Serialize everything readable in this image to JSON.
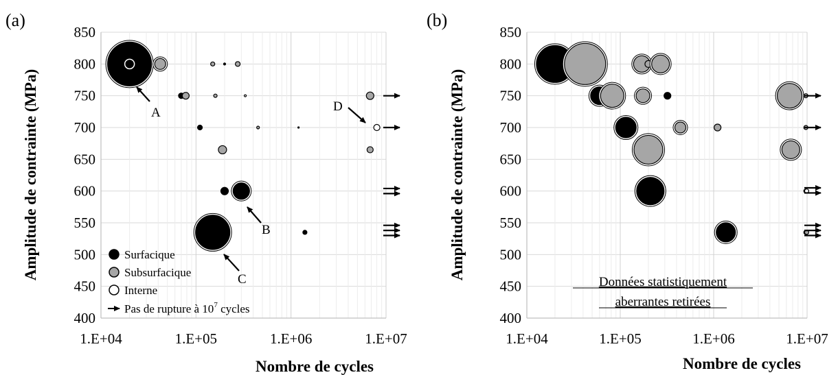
{
  "chart_data": [
    {
      "type": "scatter",
      "panel_label": "(a)",
      "xlabel": "Nombre de cycles",
      "ylabel": "Amplitude de contrainte (MPa)",
      "xscale": "log",
      "xlim": [
        10000,
        10000000
      ],
      "ylim": [
        400,
        850
      ],
      "x_ticks": [
        "1.E+04",
        "1.E+05",
        "1.E+06",
        "1.E+07"
      ],
      "y_ticks": [
        "400",
        "450",
        "500",
        "550",
        "600",
        "650",
        "700",
        "750",
        "800",
        "850"
      ],
      "grid": true,
      "legend_position": "bottom-left",
      "legend": [
        {
          "label": "Surfacique",
          "symbol": "surface"
        },
        {
          "label": "Subsurfacique",
          "symbol": "subsurface"
        },
        {
          "label": "Interne",
          "symbol": "internal"
        },
        {
          "label": "Pas de rupture à 10",
          "sup": "7",
          "label_after": " cycles",
          "symbol": "arrow"
        }
      ],
      "colors": {
        "surface": "#000000",
        "subsurface": "#a6a6a6",
        "internal": "#ffffff",
        "outline": "#000000"
      },
      "points": [
        {
          "x": 20000,
          "y": 800,
          "kind": "surface",
          "size": 32
        },
        {
          "x": 20000,
          "y": 800,
          "kind": "internal",
          "size": 7
        },
        {
          "x": 42000,
          "y": 800,
          "kind": "subsurface",
          "size": 8
        },
        {
          "x": 70000,
          "y": 750,
          "kind": "surface",
          "size": 4
        },
        {
          "x": 78000,
          "y": 750,
          "kind": "subsurface",
          "size": 5
        },
        {
          "x": 150000,
          "y": 800,
          "kind": "subsurface",
          "size": 3
        },
        {
          "x": 200000,
          "y": 800,
          "kind": "surface",
          "size": 1.5
        },
        {
          "x": 275000,
          "y": 800,
          "kind": "subsurface",
          "size": 3.5
        },
        {
          "x": 160000,
          "y": 750,
          "kind": "subsurface",
          "size": 2.5
        },
        {
          "x": 330000,
          "y": 750,
          "kind": "internal",
          "size": 1.5
        },
        {
          "x": 110000,
          "y": 700,
          "kind": "surface",
          "size": 3.5
        },
        {
          "x": 450000,
          "y": 700,
          "kind": "subsurface",
          "size": 2
        },
        {
          "x": 1200000,
          "y": 700,
          "kind": "surface",
          "size": 1
        },
        {
          "x": 190000,
          "y": 665,
          "kind": "subsurface",
          "size": 6
        },
        {
          "x": 200000,
          "y": 600,
          "kind": "surface",
          "size": 5.5
        },
        {
          "x": 300000,
          "y": 600,
          "kind": "surface",
          "size": 12
        },
        {
          "x": 150000,
          "y": 535,
          "kind": "surface",
          "size": 25
        },
        {
          "x": 1400000,
          "y": 535,
          "kind": "surface",
          "size": 3
        },
        {
          "x": 6800000,
          "y": 750,
          "kind": "subsurface",
          "size": 5.5
        },
        {
          "x": 8000000,
          "y": 700,
          "kind": "internal",
          "size": 4.5
        },
        {
          "x": 6800000,
          "y": 665,
          "kind": "subsurface",
          "size": 4.5
        }
      ],
      "runouts": [
        {
          "x": 10000000,
          "y": 750
        },
        {
          "x": 10000000,
          "y": 700
        },
        {
          "x": 10000000,
          "y": 604
        },
        {
          "x": 10000000,
          "y": 596
        },
        {
          "x": 10000000,
          "y": 546
        },
        {
          "x": 10000000,
          "y": 538
        },
        {
          "x": 10000000,
          "y": 530
        }
      ],
      "callouts": [
        {
          "label": "A",
          "x": 20000,
          "y": 800
        },
        {
          "label": "B",
          "x": 300000,
          "y": 600
        },
        {
          "label": "C",
          "x": 150000,
          "y": 535
        },
        {
          "label": "D",
          "x": 8000000,
          "y": 700
        }
      ]
    },
    {
      "type": "scatter",
      "panel_label": "(b)",
      "xlabel": "Nombre de cycles",
      "ylabel": "Amplitude de contrainte (MPa)",
      "xscale": "log",
      "xlim": [
        10000,
        10000000
      ],
      "ylim": [
        400,
        850
      ],
      "x_ticks": [
        "1.E+04",
        "1.E+05",
        "1.E+06",
        "1.E+07"
      ],
      "y_ticks": [
        "400",
        "450",
        "500",
        "550",
        "600",
        "650",
        "700",
        "750",
        "800",
        "850"
      ],
      "grid": true,
      "annotation": [
        "Données statistiquement",
        "aberrantes retirées"
      ],
      "points": [
        {
          "x": 20000,
          "y": 800,
          "kind": "surface",
          "size": 27
        },
        {
          "x": 42000,
          "y": 800,
          "kind": "subsurface",
          "size": 30
        },
        {
          "x": 60000,
          "y": 750,
          "kind": "surface",
          "size": 13
        },
        {
          "x": 82000,
          "y": 750,
          "kind": "subsurface",
          "size": 17
        },
        {
          "x": 170000,
          "y": 800,
          "kind": "subsurface",
          "size": 12
        },
        {
          "x": 200000,
          "y": 800,
          "kind": "subsurface",
          "size": 5
        },
        {
          "x": 270000,
          "y": 800,
          "kind": "subsurface",
          "size": 13
        },
        {
          "x": 175000,
          "y": 750,
          "kind": "subsurface",
          "size": 10
        },
        {
          "x": 320000,
          "y": 750,
          "kind": "surface",
          "size": 5
        },
        {
          "x": 115000,
          "y": 700,
          "kind": "surface",
          "size": 15
        },
        {
          "x": 440000,
          "y": 700,
          "kind": "subsurface",
          "size": 8
        },
        {
          "x": 1100000,
          "y": 700,
          "kind": "subsurface",
          "size": 5
        },
        {
          "x": 200000,
          "y": 665,
          "kind": "subsurface",
          "size": 21
        },
        {
          "x": 210000,
          "y": 600,
          "kind": "surface",
          "size": 20
        },
        {
          "x": 1350000,
          "y": 535,
          "kind": "surface",
          "size": 14
        },
        {
          "x": 6500000,
          "y": 750,
          "kind": "subsurface",
          "size": 18
        },
        {
          "x": 6700000,
          "y": 665,
          "kind": "subsurface",
          "size": 13
        },
        {
          "x": 9700000,
          "y": 750,
          "kind": "subsurface",
          "size": 3
        },
        {
          "x": 9700000,
          "y": 700,
          "kind": "subsurface",
          "size": 3
        },
        {
          "x": 9700000,
          "y": 600,
          "kind": "subsurface",
          "size": 3
        },
        {
          "x": 9900000,
          "y": 600,
          "kind": "internal",
          "size": 3
        },
        {
          "x": 9700000,
          "y": 535,
          "kind": "internal",
          "size": 3
        },
        {
          "x": 9900000,
          "y": 535,
          "kind": "subsurface",
          "size": 3
        }
      ],
      "runouts": [
        {
          "x": 10000000,
          "y": 750
        },
        {
          "x": 10000000,
          "y": 700
        },
        {
          "x": 10000000,
          "y": 605
        },
        {
          "x": 10000000,
          "y": 597
        },
        {
          "x": 10000000,
          "y": 546
        },
        {
          "x": 10000000,
          "y": 538
        },
        {
          "x": 10000000,
          "y": 530
        }
      ]
    }
  ]
}
